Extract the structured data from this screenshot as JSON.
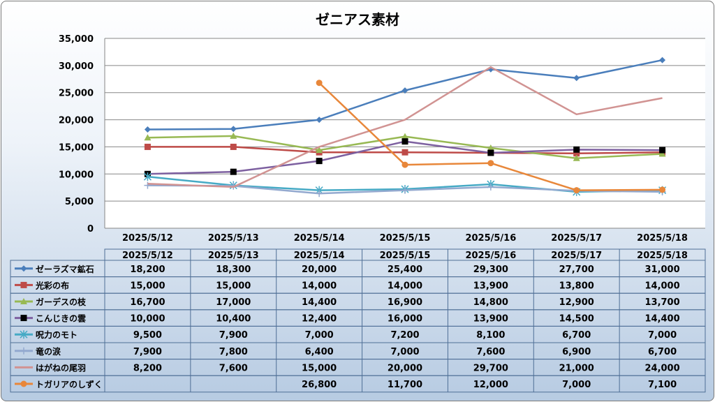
{
  "chart_data": {
    "type": "line",
    "title": "ゼニアス素材",
    "categories": [
      "2025/5/12",
      "2025/5/13",
      "2025/5/14",
      "2025/5/15",
      "2025/5/16",
      "2025/5/17",
      "2025/5/18"
    ],
    "ylim": [
      0,
      35000
    ],
    "y_ticks": [
      "0",
      "5,000",
      "10,000",
      "15,000",
      "20,000",
      "25,000",
      "30,000",
      "35,000"
    ],
    "y_tick_values": [
      0,
      5000,
      10000,
      15000,
      20000,
      25000,
      30000,
      35000
    ],
    "grid": "horizontal",
    "legend": "data-table",
    "series": [
      {
        "name": "ゼーラズマ鉱石",
        "color": "#4a7ebb",
        "marker": "diamond",
        "values": [
          18200,
          18300,
          20000,
          25400,
          29300,
          27700,
          31000
        ],
        "labels": [
          "18,200",
          "18,300",
          "20,000",
          "25,400",
          "29,300",
          "27,700",
          "31,000"
        ]
      },
      {
        "name": "光彩の布",
        "color": "#be4b48",
        "marker": "square",
        "values": [
          15000,
          15000,
          14000,
          14000,
          13900,
          13800,
          14000
        ],
        "labels": [
          "15,000",
          "15,000",
          "14,000",
          "14,000",
          "13,900",
          "13,800",
          "14,000"
        ]
      },
      {
        "name": "ガーデスの枝",
        "color": "#98b954",
        "marker": "triangle",
        "values": [
          16700,
          17000,
          14400,
          16900,
          14800,
          12900,
          13700
        ],
        "labels": [
          "16,700",
          "17,000",
          "14,400",
          "16,900",
          "14,800",
          "12,900",
          "13,700"
        ]
      },
      {
        "name": "こんじきの雲",
        "color": "#7d60a0",
        "marker": "black-square",
        "values": [
          10000,
          10400,
          12400,
          16000,
          13900,
          14500,
          14400
        ],
        "labels": [
          "10,000",
          "10,400",
          "12,400",
          "16,000",
          "13,900",
          "14,500",
          "14,400"
        ]
      },
      {
        "name": "呪力のモト",
        "color": "#46aac5",
        "marker": "star",
        "values": [
          9500,
          7900,
          7000,
          7200,
          8100,
          6700,
          7000
        ],
        "labels": [
          "9,500",
          "7,900",
          "7,000",
          "7,200",
          "8,100",
          "6,700",
          "7,000"
        ]
      },
      {
        "name": "竜の涙",
        "color": "#93a9cf",
        "marker": "plus",
        "values": [
          7900,
          7800,
          6400,
          7000,
          7600,
          6900,
          6700
        ],
        "labels": [
          "7,900",
          "7,800",
          "6,400",
          "7,000",
          "7,600",
          "6,900",
          "6,700"
        ]
      },
      {
        "name": "はがねの尾羽",
        "color": "#d19392",
        "marker": "none",
        "values": [
          8200,
          7600,
          15000,
          20000,
          29700,
          21000,
          24000
        ],
        "labels": [
          "8,200",
          "7,600",
          "15,000",
          "20,000",
          "29,700",
          "21,000",
          "24,000"
        ]
      },
      {
        "name": "トガリアのしずく",
        "color": "#e8873a",
        "marker": "circle",
        "values": [
          null,
          null,
          26800,
          11700,
          12000,
          7000,
          7100
        ],
        "labels": [
          "",
          "",
          "26,800",
          "11,700",
          "12,000",
          "7,000",
          "7,100"
        ]
      }
    ]
  }
}
